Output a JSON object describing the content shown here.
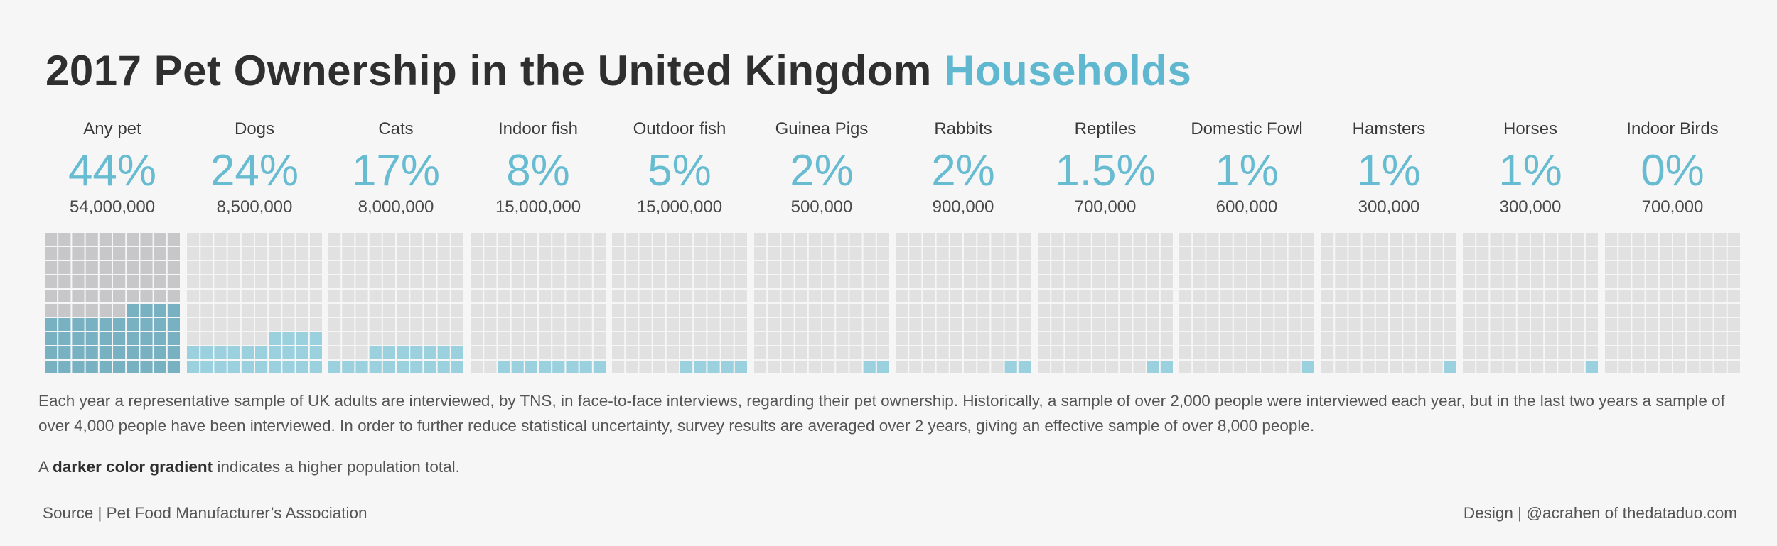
{
  "title": {
    "main": "2017 Pet Ownership in the United Kingdom",
    "accent": "Households"
  },
  "colors": {
    "accent": "#5fb8cf",
    "pct_text": "#68bcd2",
    "empty_cell": "#e1e1e1",
    "first_empty_cell": "#c7c7c9",
    "filled_dark": "#77b1c2",
    "filled_light": "#9bd0de"
  },
  "chart_data": {
    "type": "waffle",
    "categories": [
      "Any pet",
      "Dogs",
      "Cats",
      "Indoor fish",
      "Outdoor fish",
      "Guinea Pigs",
      "Rabbits",
      "Reptiles",
      "Domestic Fowl",
      "Hamsters",
      "Horses",
      "Indoor Birds"
    ],
    "percent_labels": [
      "44%",
      "24%",
      "17%",
      "8%",
      "5%",
      "2%",
      "2%",
      "1.5%",
      "1%",
      "1%",
      "1%",
      "0%"
    ],
    "percent_values": [
      44,
      24,
      17,
      8,
      5,
      2,
      2,
      1.5,
      1,
      1,
      1,
      0
    ],
    "count_labels": [
      "54,000,000",
      "8,500,000",
      "8,000,000",
      "15,000,000",
      "15,000,000",
      "500,000",
      "900,000",
      "700,000",
      "600,000",
      "300,000",
      "300,000",
      "700,000"
    ],
    "counts": [
      54000000,
      8500000,
      8000000,
      15000000,
      15000000,
      500000,
      900000,
      700000,
      600000,
      300000,
      300000,
      700000
    ],
    "grid": {
      "rows": 10,
      "cols": 10
    }
  },
  "description": "Each year a representative sample of UK adults are interviewed, by TNS, in face-to-face interviews, regarding their pet ownership. Historically, a sample of over 2,000 people were interviewed each year, but in the last two years a sample of over 4,000 people have been interviewed. In order to further reduce statistical uncertainty, survey results are averaged over 2 years, giving an effective sample of over 8,000 people.",
  "note": {
    "prefix": "A ",
    "bold": "darker color gradient",
    "suffix": " indicates a higher population total."
  },
  "source": "Source | Pet Food Manufacturer’s Association",
  "design": "Design | @acrahen of thedataduo.com"
}
